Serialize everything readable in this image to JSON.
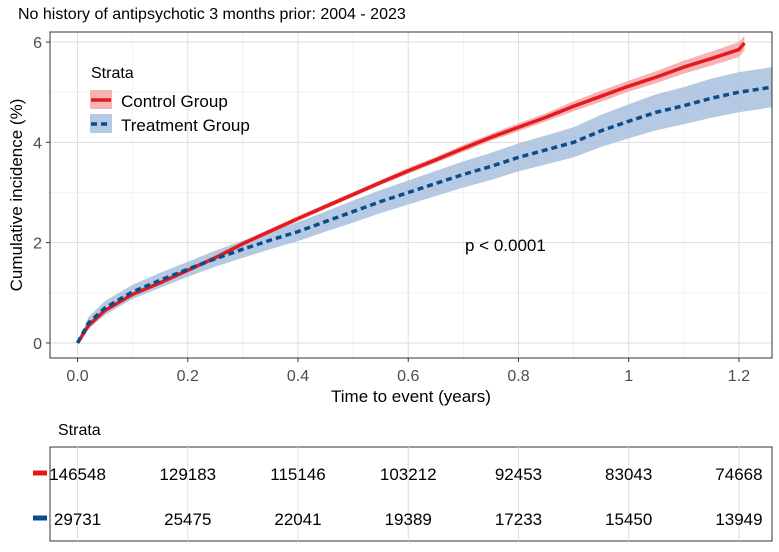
{
  "chart_data": {
    "type": "line",
    "title": "No history of antipsychotic 3 months prior: 2004 - 2023",
    "xlabel": "Time to event (years)",
    "ylabel": "Cumulative incidence (%)",
    "xlim": [
      -0.05,
      1.26
    ],
    "ylim": [
      -0.3,
      6.2
    ],
    "x_ticks": [
      0,
      0.2,
      0.4,
      0.6,
      0.8,
      1,
      1.2
    ],
    "x_tick_labels": [
      "0.0",
      "0.2",
      "0.4",
      "0.6",
      "0.8",
      "1",
      "1.2"
    ],
    "y_ticks": [
      0,
      2,
      4,
      6
    ],
    "y_tick_labels": [
      "0",
      "2",
      "4",
      "6"
    ],
    "grid": true,
    "annotation": "p < 0.0001",
    "legend": {
      "title": "Strata",
      "placement": "top-left"
    },
    "series": [
      {
        "name": "Control Group",
        "color": "#e41a1c",
        "band_color": "#f4a6a8",
        "line_style": "solid",
        "x": [
          0,
          0.02,
          0.05,
          0.1,
          0.15,
          0.2,
          0.25,
          0.3,
          0.35,
          0.4,
          0.45,
          0.5,
          0.55,
          0.6,
          0.65,
          0.7,
          0.75,
          0.8,
          0.85,
          0.9,
          0.95,
          1.0,
          1.05,
          1.1,
          1.15,
          1.2,
          1.21
        ],
        "y": [
          0,
          0.35,
          0.65,
          0.97,
          1.2,
          1.45,
          1.7,
          1.98,
          2.23,
          2.48,
          2.72,
          2.96,
          3.2,
          3.43,
          3.65,
          3.88,
          4.1,
          4.3,
          4.5,
          4.72,
          4.92,
          5.12,
          5.3,
          5.5,
          5.67,
          5.85,
          5.98
        ],
        "lower": [
          0,
          0.3,
          0.6,
          0.92,
          1.15,
          1.4,
          1.65,
          1.93,
          2.18,
          2.43,
          2.67,
          2.91,
          3.15,
          3.37,
          3.59,
          3.81,
          4.03,
          4.22,
          4.42,
          4.62,
          4.81,
          5.01,
          5.18,
          5.37,
          5.53,
          5.7,
          5.83
        ],
        "upper": [
          0,
          0.4,
          0.7,
          1.02,
          1.25,
          1.5,
          1.75,
          2.03,
          2.28,
          2.53,
          2.77,
          3.01,
          3.25,
          3.49,
          3.71,
          3.95,
          4.17,
          4.38,
          4.58,
          4.82,
          5.03,
          5.23,
          5.42,
          5.63,
          5.81,
          6.0,
          6.13
        ]
      },
      {
        "name": "Treatment Group",
        "color": "#084d8c",
        "band_color": "#a9c0dd",
        "line_style": "dashed",
        "x": [
          0,
          0.02,
          0.05,
          0.1,
          0.15,
          0.2,
          0.25,
          0.3,
          0.35,
          0.4,
          0.45,
          0.5,
          0.55,
          0.6,
          0.65,
          0.7,
          0.75,
          0.8,
          0.85,
          0.9,
          0.95,
          1.0,
          1.05,
          1.1,
          1.15,
          1.2,
          1.26
        ],
        "y": [
          0,
          0.4,
          0.7,
          1.02,
          1.25,
          1.47,
          1.68,
          1.87,
          2.05,
          2.22,
          2.42,
          2.62,
          2.82,
          3.0,
          3.18,
          3.36,
          3.52,
          3.7,
          3.85,
          4.0,
          4.23,
          4.42,
          4.6,
          4.73,
          4.88,
          5.0,
          5.1
        ],
        "lower": [
          0,
          0.28,
          0.56,
          0.88,
          1.1,
          1.32,
          1.52,
          1.7,
          1.87,
          2.03,
          2.22,
          2.4,
          2.59,
          2.76,
          2.93,
          3.1,
          3.25,
          3.42,
          3.56,
          3.7,
          3.91,
          4.08,
          4.24,
          4.36,
          4.49,
          4.6,
          4.7
        ],
        "upper": [
          0,
          0.52,
          0.84,
          1.16,
          1.4,
          1.62,
          1.84,
          2.04,
          2.23,
          2.41,
          2.62,
          2.84,
          3.05,
          3.24,
          3.43,
          3.62,
          3.79,
          3.98,
          4.14,
          4.3,
          4.55,
          4.76,
          4.96,
          5.1,
          5.27,
          5.4,
          5.5
        ]
      }
    ],
    "risk_table": {
      "title": "Strata",
      "rows": [
        {
          "name": "Control Group",
          "color": "#e41a1c",
          "values": [
            "146548",
            "129183",
            "115146",
            "103212",
            "92453",
            "83043",
            "74668"
          ]
        },
        {
          "name": "Treatment Group",
          "color": "#084d8c",
          "values": [
            "29731",
            "25475",
            "22041",
            "19389",
            "17233",
            "15450",
            "13949"
          ]
        }
      ]
    }
  }
}
